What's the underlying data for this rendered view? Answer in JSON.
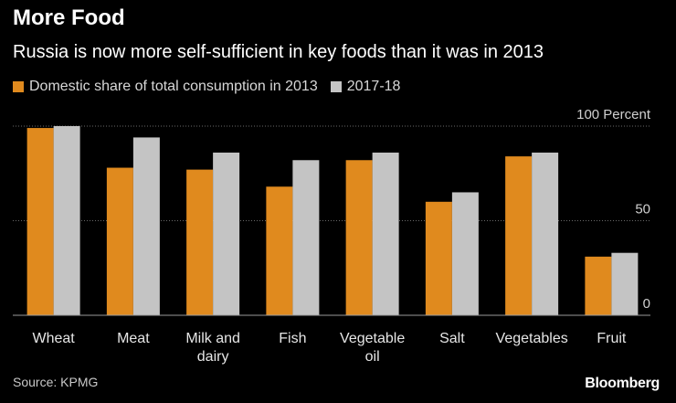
{
  "header": {
    "title": "More Food",
    "subtitle": "Russia is now more self-sufficient in key foods than it was in 2013"
  },
  "footer": {
    "source": "Source: KPMG",
    "brand": "Bloomberg"
  },
  "chart_data": {
    "type": "bar",
    "title": "More Food",
    "subtitle": "Russia is now more self-sufficient in key foods than it was in 2013",
    "categories": [
      [
        "Wheat"
      ],
      [
        "Meat"
      ],
      [
        "Milk and",
        "dairy"
      ],
      [
        "Fish"
      ],
      [
        "Vegetable",
        "oil"
      ],
      [
        "Salt"
      ],
      [
        "Vegetables"
      ],
      [
        "Fruit"
      ]
    ],
    "series": [
      {
        "name": "Domestic share of total consumption in 2013",
        "color": "#e08a1e",
        "values": [
          99,
          78,
          77,
          68,
          82,
          60,
          84,
          31
        ]
      },
      {
        "name": "2017-18",
        "color": "#c4c4c4",
        "values": [
          100,
          94,
          86,
          82,
          86,
          65,
          86,
          33
        ]
      }
    ],
    "yticks": [
      0,
      50,
      100
    ],
    "ytick_labels": [
      "0",
      "50",
      "100 Percent"
    ],
    "ylim": [
      0,
      100
    ],
    "legend": "top-left",
    "grid": true,
    "xlabel": "",
    "ylabel": "Percent"
  }
}
